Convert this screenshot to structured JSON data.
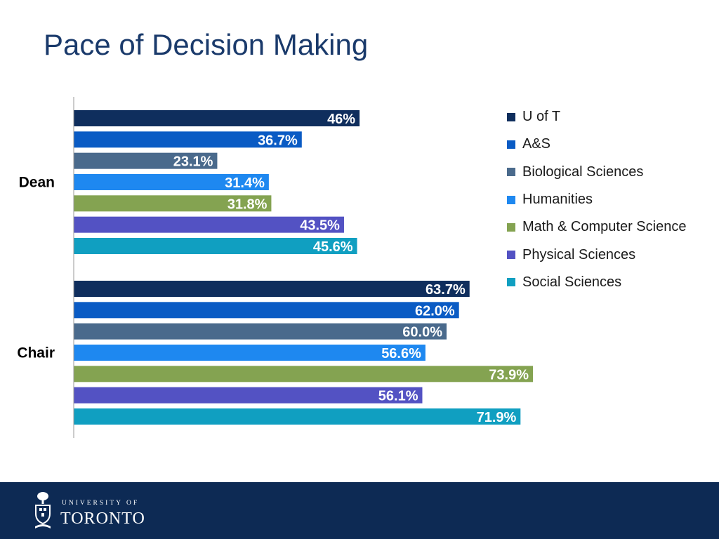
{
  "slide": {
    "title": "Pace of Decision Making"
  },
  "chart_data": {
    "type": "bar",
    "orientation": "horizontal",
    "categories": [
      "Dean",
      "Chair"
    ],
    "series": [
      {
        "name": "U of T",
        "color": "#0f2e5d",
        "values": [
          46.0,
          63.7
        ],
        "labels": [
          "46%",
          "63.7%"
        ]
      },
      {
        "name": "A&S",
        "color": "#0a5bc4",
        "values": [
          36.7,
          62.0
        ],
        "labels": [
          "36.7%",
          "62.0%"
        ]
      },
      {
        "name": "Biological Sciences",
        "color": "#4a6a8c",
        "values": [
          23.1,
          60.0
        ],
        "labels": [
          "23.1%",
          "60.0%"
        ]
      },
      {
        "name": "Humanities",
        "color": "#1e88f0",
        "values": [
          31.4,
          56.6
        ],
        "labels": [
          "31.4%",
          "56.6%"
        ]
      },
      {
        "name": "Math & Computer Science",
        "color": "#84a351",
        "values": [
          31.8,
          73.9
        ],
        "labels": [
          "31.8%",
          "73.9%"
        ]
      },
      {
        "name": "Physical Sciences",
        "color": "#5352c3",
        "values": [
          43.5,
          56.1
        ],
        "labels": [
          "43.5%",
          "56.1%"
        ]
      },
      {
        "name": "Social Sciences",
        "color": "#109fc1",
        "values": [
          45.6,
          71.9
        ],
        "labels": [
          "45.6%",
          "71.9%"
        ]
      }
    ],
    "xlim": [
      0,
      100
    ],
    "grid": false,
    "legend_position": "right"
  },
  "footer": {
    "university_of": "UNIVERSITY OF",
    "university_name": "TORONTO",
    "band_color": "#0d2a54"
  }
}
